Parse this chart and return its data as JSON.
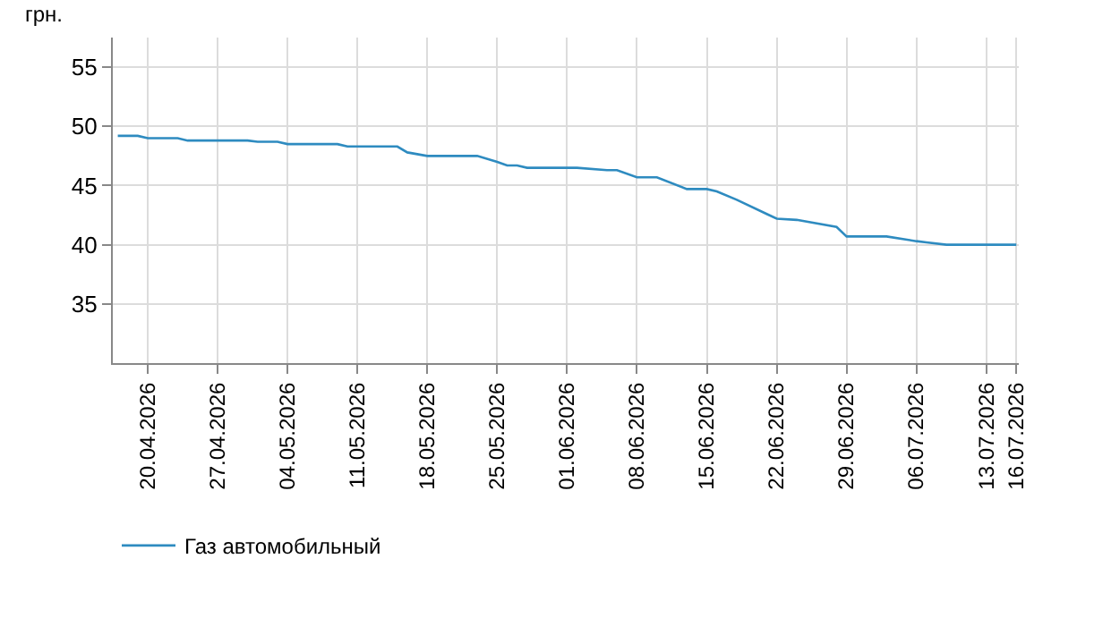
{
  "chart_data": {
    "type": "line",
    "ylabel": "грн.",
    "x": [
      "2026-04-17",
      "2026-04-19",
      "2026-04-20",
      "2026-04-23",
      "2026-04-24",
      "2026-04-30",
      "2026-05-01",
      "2026-05-03",
      "2026-05-04",
      "2026-05-09",
      "2026-05-10",
      "2026-05-15",
      "2026-05-16",
      "2026-05-18",
      "2026-05-23",
      "2026-05-25",
      "2026-05-26",
      "2026-05-27",
      "2026-05-28",
      "2026-06-02",
      "2026-06-05",
      "2026-06-06",
      "2026-06-08",
      "2026-06-10",
      "2026-06-13",
      "2026-06-15",
      "2026-06-16",
      "2026-06-18",
      "2026-06-21",
      "2026-06-22",
      "2026-06-24",
      "2026-06-28",
      "2026-06-29",
      "2026-07-03",
      "2026-07-06",
      "2026-07-07",
      "2026-07-09",
      "2026-07-16"
    ],
    "series": [
      {
        "name": "Газ автомобильный",
        "color": "#2e8bc0",
        "values": [
          49.2,
          49.2,
          49.0,
          49.0,
          48.8,
          48.8,
          48.7,
          48.7,
          48.5,
          48.5,
          48.3,
          48.3,
          47.8,
          47.5,
          47.5,
          47.0,
          46.7,
          46.7,
          46.5,
          46.5,
          46.3,
          46.3,
          45.7,
          45.7,
          44.7,
          44.7,
          44.5,
          43.8,
          42.6,
          42.2,
          42.1,
          41.5,
          40.7,
          40.7,
          40.3,
          40.2,
          40.0,
          40.0
        ]
      }
    ],
    "xlim": [
      "2026-04-16T12:00",
      "2026-07-16T06:00"
    ],
    "xticks": [
      {
        "value": "2026-04-20",
        "label": "20.04.2026"
      },
      {
        "value": "2026-04-27",
        "label": "27.04.2026"
      },
      {
        "value": "2026-05-04",
        "label": "04.05.2026"
      },
      {
        "value": "2026-05-11",
        "label": "11.05.2026"
      },
      {
        "value": "2026-05-18",
        "label": "18.05.2026"
      },
      {
        "value": "2026-05-25",
        "label": "25.05.2026"
      },
      {
        "value": "2026-06-01",
        "label": "01.06.2026"
      },
      {
        "value": "2026-06-08",
        "label": "08.06.2026"
      },
      {
        "value": "2026-06-15",
        "label": "15.06.2026"
      },
      {
        "value": "2026-06-22",
        "label": "22.06.2026"
      },
      {
        "value": "2026-06-29",
        "label": "29.06.2026"
      },
      {
        "value": "2026-07-06",
        "label": "06.07.2026"
      },
      {
        "value": "2026-07-13",
        "label": "13.07.2026"
      },
      {
        "value": "2026-07-16",
        "label": "16.07.2026"
      }
    ],
    "ylim": [
      30,
      57.5
    ],
    "yticks": [
      35,
      40,
      45,
      50,
      55
    ],
    "grid": true,
    "legend": "bottom left",
    "marker": "none",
    "line_style": "solid"
  }
}
